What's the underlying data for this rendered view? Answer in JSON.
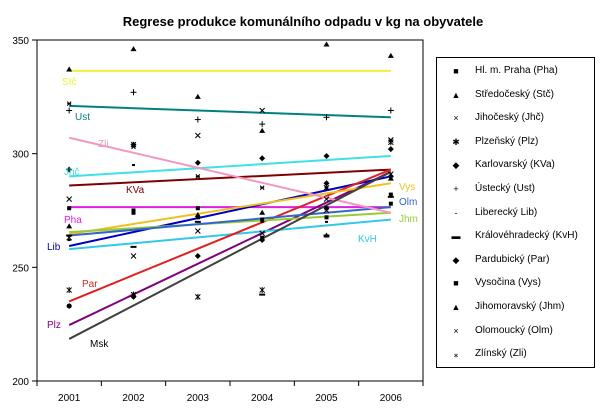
{
  "chart_data": {
    "type": "scatter",
    "title": "Regrese produkce komunálního odpadu v kg na obyvatele",
    "xlabel": "",
    "ylabel": "",
    "categories": [
      "2001",
      "2002",
      "2003",
      "2004",
      "2005",
      "2006"
    ],
    "ylim": [
      200,
      350
    ],
    "yticks": [
      "200",
      "250",
      "300",
      "350"
    ],
    "legend_position": "right",
    "series": [
      {
        "name": "Hl. m. Praha (Pha)",
        "label": "Pha",
        "marker": "■",
        "color": "#e020e0",
        "values": [
          276,
          275,
          276,
          263,
          276,
          278
        ],
        "trend": [
          276.5,
          276.5
        ]
      },
      {
        "name": "Středočeský (Stč)",
        "label": "Stč",
        "marker": "▲",
        "color": "#f0f040",
        "values": [
          337,
          346,
          325,
          310,
          348,
          343
        ],
        "trend": [
          336.4,
          336.4
        ]
      },
      {
        "name": "Jihočeský (Jhč)",
        "label": "Jhč",
        "marker": "×",
        "color": "#40e0e8",
        "values": [
          280,
          304,
          308,
          319,
          275,
          306
        ],
        "trend": [
          290,
          299
        ]
      },
      {
        "name": "Plzeňský (Plz)",
        "label": "Plz",
        "marker": "✱",
        "color": "#800080",
        "values": [
          240,
          238,
          237,
          240,
          285,
          305
        ],
        "trend": [
          224.6,
          292
        ]
      },
      {
        "name": "Karlovarský (KVa)",
        "label": "KVa",
        "marker": "◆",
        "color": "#800000",
        "values": [
          293,
          304,
          296,
          298,
          299,
          302
        ],
        "trend": [
          286,
          293
        ]
      },
      {
        "name": "Ústecký (Ust)",
        "label": "Ust",
        "marker": "+",
        "color": "#008080",
        "values": [
          319,
          327,
          315,
          313,
          316,
          319
        ],
        "trend": [
          321,
          316
        ]
      },
      {
        "name": "Liberecký Lib)",
        "label": "Lib",
        "marker": "-",
        "color": "#0000c0",
        "values": [
          262,
          295,
          290,
          270,
          270,
          289
        ],
        "trend": [
          259.4,
          290
        ]
      },
      {
        "name": "Královéhradecký (KvH)",
        "label": "KvH",
        "marker": "▬",
        "color": "#33c8e8",
        "values": [
          264,
          259,
          270,
          238,
          264,
          281
        ],
        "trend": [
          258,
          271
        ]
      },
      {
        "name": "Pardubický (Par)",
        "label": "Par",
        "marker": "◆",
        "color": "#e02020",
        "values": [
          233,
          237,
          255,
          262,
          287,
          290
        ],
        "trend": [
          235,
          293
        ]
      },
      {
        "name": "Vysočina (Vys)",
        "label": "Vys",
        "marker": "■",
        "color": "#f0c020",
        "values": [
          233,
          274,
          272,
          271,
          272,
          282
        ],
        "trend": [
          264.6,
          287
        ]
      },
      {
        "name": "Jihomoravský (Jhm)",
        "label": "Jhm",
        "marker": "▲",
        "color": "#99cc33",
        "values": [
          268,
          238,
          273,
          274,
          264,
          289
        ],
        "trend": [
          265.5,
          274
        ]
      },
      {
        "name": "Olomoucký (Olm)",
        "label": "Olm",
        "marker": "×",
        "color": "#3366cc",
        "values": [
          263,
          255,
          266,
          265,
          280,
          291
        ],
        "trend": [
          264,
          276.5
        ]
      },
      {
        "name": "Zlínský (Zli)",
        "label": "Zli",
        "marker": "⁎",
        "color": "#f098c0",
        "values": [
          322,
          303,
          290,
          285,
          285,
          306
        ],
        "trend": [
          307,
          274
        ]
      },
      {
        "name": "Msk",
        "label": "Msk",
        "marker": "",
        "color": "#404040",
        "values": [],
        "trend": [
          218.5,
          292
        ]
      }
    ]
  }
}
